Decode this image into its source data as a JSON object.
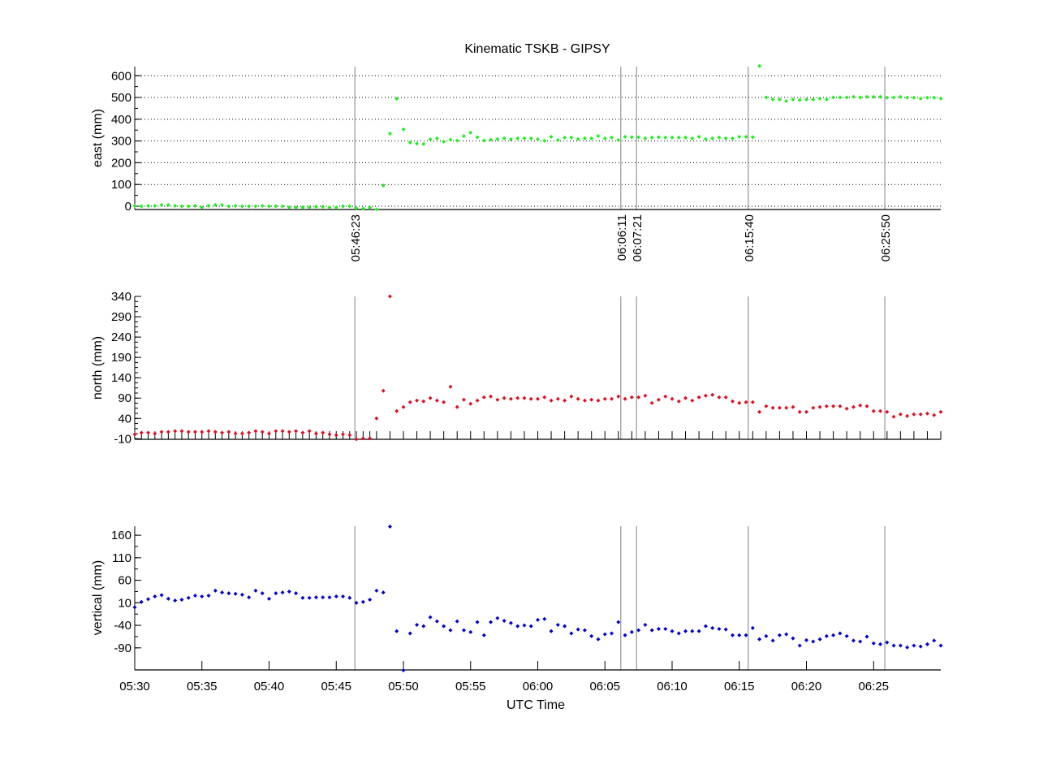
{
  "chart_data": [
    {
      "type": "scatter",
      "title": "Kinematic TSKB - GIPSY",
      "ylabel": "east (mm)",
      "xlabel": "",
      "color": "#22ee22",
      "ylim": [
        -15,
        642
      ],
      "yticks": [
        0,
        100,
        200,
        300,
        400,
        500,
        600
      ],
      "ytick_labels": [
        "0",
        "100",
        "200",
        "300",
        "400",
        "500",
        "600"
      ],
      "grid": true,
      "values": [
        2,
        0,
        2,
        2,
        6,
        6,
        2,
        0,
        0,
        2,
        -5,
        2,
        6,
        6,
        0,
        2,
        0,
        0,
        0,
        2,
        0,
        0,
        0,
        -5,
        -5,
        -5,
        -5,
        -2,
        -2,
        -5,
        -5,
        0,
        0,
        -9,
        -11,
        -6,
        -14,
        95,
        334,
        494,
        353,
        293,
        288,
        286,
        308,
        312,
        297,
        306,
        302,
        323,
        338,
        317,
        302,
        306,
        309,
        312,
        308,
        312,
        312,
        312,
        308,
        301,
        319,
        304,
        316,
        316,
        309,
        312,
        312,
        323,
        312,
        316,
        304,
        319,
        317,
        317,
        312,
        316,
        317,
        316,
        316,
        316,
        316,
        312,
        319,
        309,
        312,
        316,
        312,
        312,
        319,
        319,
        317,
        645,
        500,
        491,
        491,
        484,
        491,
        488,
        491,
        491,
        495,
        491,
        500,
        500,
        500,
        503,
        500,
        503,
        503,
        503,
        499,
        500,
        503,
        499,
        499,
        495,
        499,
        499,
        495
      ]
    },
    {
      "type": "scatter",
      "ylabel": "north (mm)",
      "xlabel": "",
      "color": "#dd1122",
      "ylim": [
        -11.3,
        340
      ],
      "yticks": [
        -10,
        40,
        90,
        140,
        190,
        240,
        290,
        340
      ],
      "ytick_labels": [
        "-10",
        "40",
        "90",
        "140",
        "190",
        "240",
        "290",
        "340"
      ],
      "grid": false,
      "values": [
        1,
        5,
        5,
        3,
        7,
        7,
        9,
        9,
        7,
        7,
        7,
        9,
        7,
        5,
        7,
        3,
        3,
        5,
        9,
        7,
        3,
        9,
        9,
        7,
        9,
        5,
        9,
        3,
        5,
        1,
        -1,
        1,
        -1,
        -11,
        -9,
        -9,
        40,
        108,
        340,
        58,
        68,
        80,
        84,
        82,
        90,
        84,
        80,
        118,
        68,
        86,
        76,
        84,
        92,
        94,
        86,
        90,
        88,
        90,
        90,
        88,
        88,
        92,
        84,
        88,
        84,
        94,
        88,
        84,
        86,
        84,
        88,
        88,
        94,
        88,
        92,
        92,
        96,
        78,
        86,
        94,
        88,
        82,
        90,
        84,
        92,
        96,
        98,
        92,
        92,
        82,
        78,
        80,
        80,
        56,
        70,
        66,
        66,
        66,
        68,
        56,
        56,
        66,
        68,
        70,
        70,
        70,
        64,
        68,
        72,
        70,
        58,
        58,
        56,
        44,
        50,
        46,
        50,
        50,
        52,
        48,
        56
      ]
    },
    {
      "type": "scatter",
      "ylabel": "vertical (mm)",
      "xlabel": "UTC Time",
      "color": "#0000cc",
      "ylim": [
        -139,
        180
      ],
      "yticks": [
        -90,
        -40,
        10,
        60,
        110,
        160
      ],
      "ytick_labels": [
        "-90",
        "-40",
        "10",
        "60",
        "110",
        "160"
      ],
      "grid": false,
      "values": [
        0,
        12,
        18,
        24,
        27,
        19,
        15,
        17,
        21,
        26,
        24,
        26,
        37,
        33,
        31,
        30,
        28,
        22,
        37,
        31,
        19,
        31,
        33,
        35,
        31,
        21,
        21,
        22,
        22,
        22,
        24,
        24,
        21,
        10,
        12,
        17,
        37,
        33,
        179,
        -53,
        -140,
        -58,
        -39,
        -42,
        -22,
        -31,
        -42,
        -51,
        -31,
        -51,
        -55,
        -33,
        -62,
        -33,
        -24,
        -30,
        -35,
        -42,
        -40,
        -42,
        -28,
        -26,
        -53,
        -39,
        -42,
        -58,
        -49,
        -51,
        -64,
        -71,
        -60,
        -58,
        -33,
        -62,
        -55,
        -51,
        -39,
        -51,
        -48,
        -48,
        -53,
        -58,
        -53,
        -53,
        -53,
        -42,
        -46,
        -48,
        -49,
        -62,
        -62,
        -62,
        -46,
        -71,
        -64,
        -74,
        -62,
        -60,
        -69,
        -85,
        -73,
        -76,
        -71,
        -64,
        -62,
        -58,
        -64,
        -74,
        -76,
        -65,
        -80,
        -82,
        -78,
        -85,
        -85,
        -89,
        -85,
        -87,
        -82,
        -74,
        -85
      ]
    }
  ],
  "x_axis": {
    "unit": "minutes after 05:30 UTC",
    "start_minute": 0,
    "step_minutes": 0.5,
    "xlim": [
      0,
      60
    ],
    "xticks": [
      0,
      5,
      10,
      15,
      20,
      25,
      30,
      35,
      40,
      45,
      50,
      55
    ],
    "xtick_labels": [
      "05:30",
      "05:35",
      "05:40",
      "05:45",
      "05:50",
      "05:55",
      "06:00",
      "06:05",
      "06:10",
      "06:15",
      "06:20",
      "06:25"
    ]
  },
  "events": [
    {
      "label": "05:46:23",
      "t": 16.383
    },
    {
      "label": "06:06:11",
      "t": 36.183
    },
    {
      "label": "06:07:21",
      "t": 37.35
    },
    {
      "label": "06:15:40",
      "t": 45.667
    },
    {
      "label": "06:25:50",
      "t": 55.833
    }
  ],
  "colors": {
    "event_line": "#808080",
    "axis": "#000000"
  }
}
